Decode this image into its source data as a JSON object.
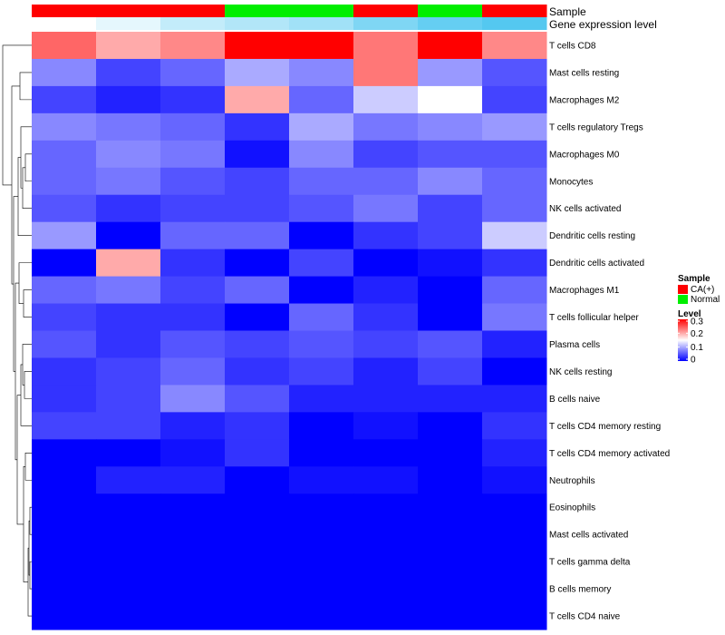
{
  "chart_data": {
    "type": "heatmap",
    "annotation_tracks": [
      {
        "name": "Sample",
        "label": "Sample",
        "values": [
          "CA(+)",
          "CA(+)",
          "CA(+)",
          "Normal",
          "Normal",
          "CA(+)",
          "Normal",
          "CA(+)"
        ]
      },
      {
        "name": "Gene expression level",
        "label": "Gene expression level",
        "values": [
          0.0,
          0.15,
          0.35,
          0.45,
          0.55,
          0.75,
          0.9,
          1.0
        ]
      }
    ],
    "annotation_colors": {
      "sample": {
        "CA(+)": "#ff0000",
        "Normal": "#00ee00"
      },
      "expression_low": "#ffffff",
      "expression_high": "#54c8f0"
    },
    "rows": [
      "T cells CD8",
      "Mast cells resting",
      "Macrophages M2",
      "T cells regulatory  Tregs",
      "Macrophages M0",
      "Monocytes",
      "NK cells activated",
      "Dendritic cells resting",
      "Dendritic cells activated",
      "Macrophages M1",
      "T cells follicular helper",
      "Plasma cells",
      "NK cells resting",
      "B cells naive",
      "T cells CD4 memory resting",
      "T cells CD4 memory activated",
      "Neutrophils",
      "Eosinophils",
      "Mast cells activated",
      "T cells gamma delta",
      "B cells memory",
      "T cells CD4 naive"
    ],
    "values": [
      [
        0.24,
        0.2,
        0.22,
        0.3,
        0.3,
        0.23,
        0.3,
        0.22
      ],
      [
        0.08,
        0.04,
        0.06,
        0.1,
        0.08,
        0.23,
        0.09,
        0.05
      ],
      [
        0.04,
        0.02,
        0.03,
        0.2,
        0.06,
        0.12,
        0.15,
        0.04
      ],
      [
        0.08,
        0.07,
        0.06,
        0.03,
        0.1,
        0.07,
        0.08,
        0.09
      ],
      [
        0.06,
        0.08,
        0.07,
        0.01,
        0.08,
        0.04,
        0.05,
        0.05
      ],
      [
        0.06,
        0.07,
        0.05,
        0.04,
        0.06,
        0.06,
        0.08,
        0.06
      ],
      [
        0.05,
        0.03,
        0.04,
        0.04,
        0.05,
        0.07,
        0.04,
        0.06
      ],
      [
        0.09,
        0.0,
        0.06,
        0.06,
        0.0,
        0.03,
        0.04,
        0.12
      ],
      [
        0.0,
        0.2,
        0.03,
        0.0,
        0.04,
        0.0,
        0.01,
        0.03
      ],
      [
        0.06,
        0.07,
        0.04,
        0.06,
        0.0,
        0.02,
        0.0,
        0.06
      ],
      [
        0.04,
        0.03,
        0.03,
        0.0,
        0.06,
        0.03,
        0.0,
        0.07
      ],
      [
        0.05,
        0.03,
        0.05,
        0.04,
        0.05,
        0.04,
        0.05,
        0.02
      ],
      [
        0.03,
        0.04,
        0.06,
        0.03,
        0.04,
        0.02,
        0.04,
        0.0
      ],
      [
        0.03,
        0.04,
        0.08,
        0.05,
        0.02,
        0.02,
        0.02,
        0.02
      ],
      [
        0.04,
        0.04,
        0.02,
        0.03,
        0.0,
        0.01,
        0.0,
        0.03
      ],
      [
        0.0,
        0.0,
        0.01,
        0.03,
        0.0,
        0.0,
        0.0,
        0.02
      ],
      [
        0.0,
        0.02,
        0.02,
        0.0,
        0.01,
        0.01,
        0.0,
        0.01
      ],
      [
        0.0,
        0.0,
        0.0,
        0.0,
        0.0,
        0.0,
        0.0,
        0.0
      ],
      [
        0.0,
        0.0,
        0.0,
        0.0,
        0.0,
        0.0,
        0.0,
        0.0
      ],
      [
        0.0,
        0.0,
        0.0,
        0.0,
        0.0,
        0.0,
        0.0,
        0.0
      ],
      [
        0.0,
        0.0,
        0.0,
        0.0,
        0.0,
        0.0,
        0.0,
        0.0
      ],
      [
        0.0,
        0.0,
        0.0,
        0.0,
        0.0,
        0.0,
        0.0,
        0.0
      ]
    ],
    "color_scale": {
      "low": "#0000ff",
      "mid": "#ffffff",
      "high": "#ff0000",
      "min": 0,
      "mid_value": 0.15,
      "max": 0.3
    },
    "legend": {
      "position": "right",
      "sample_title": "Sample",
      "sample_entries": [
        {
          "label": "CA(+)",
          "color": "#ff0000"
        },
        {
          "label": "Normal",
          "color": "#00ee00"
        }
      ],
      "level_title": "Level",
      "level_ticks": [
        {
          "value": 0.3,
          "label": "0.3"
        },
        {
          "value": 0.2,
          "label": "0.2"
        },
        {
          "value": 0.1,
          "label": "0.1"
        },
        {
          "value": 0,
          "label": "0"
        }
      ]
    },
    "row_dendrogram": true
  }
}
